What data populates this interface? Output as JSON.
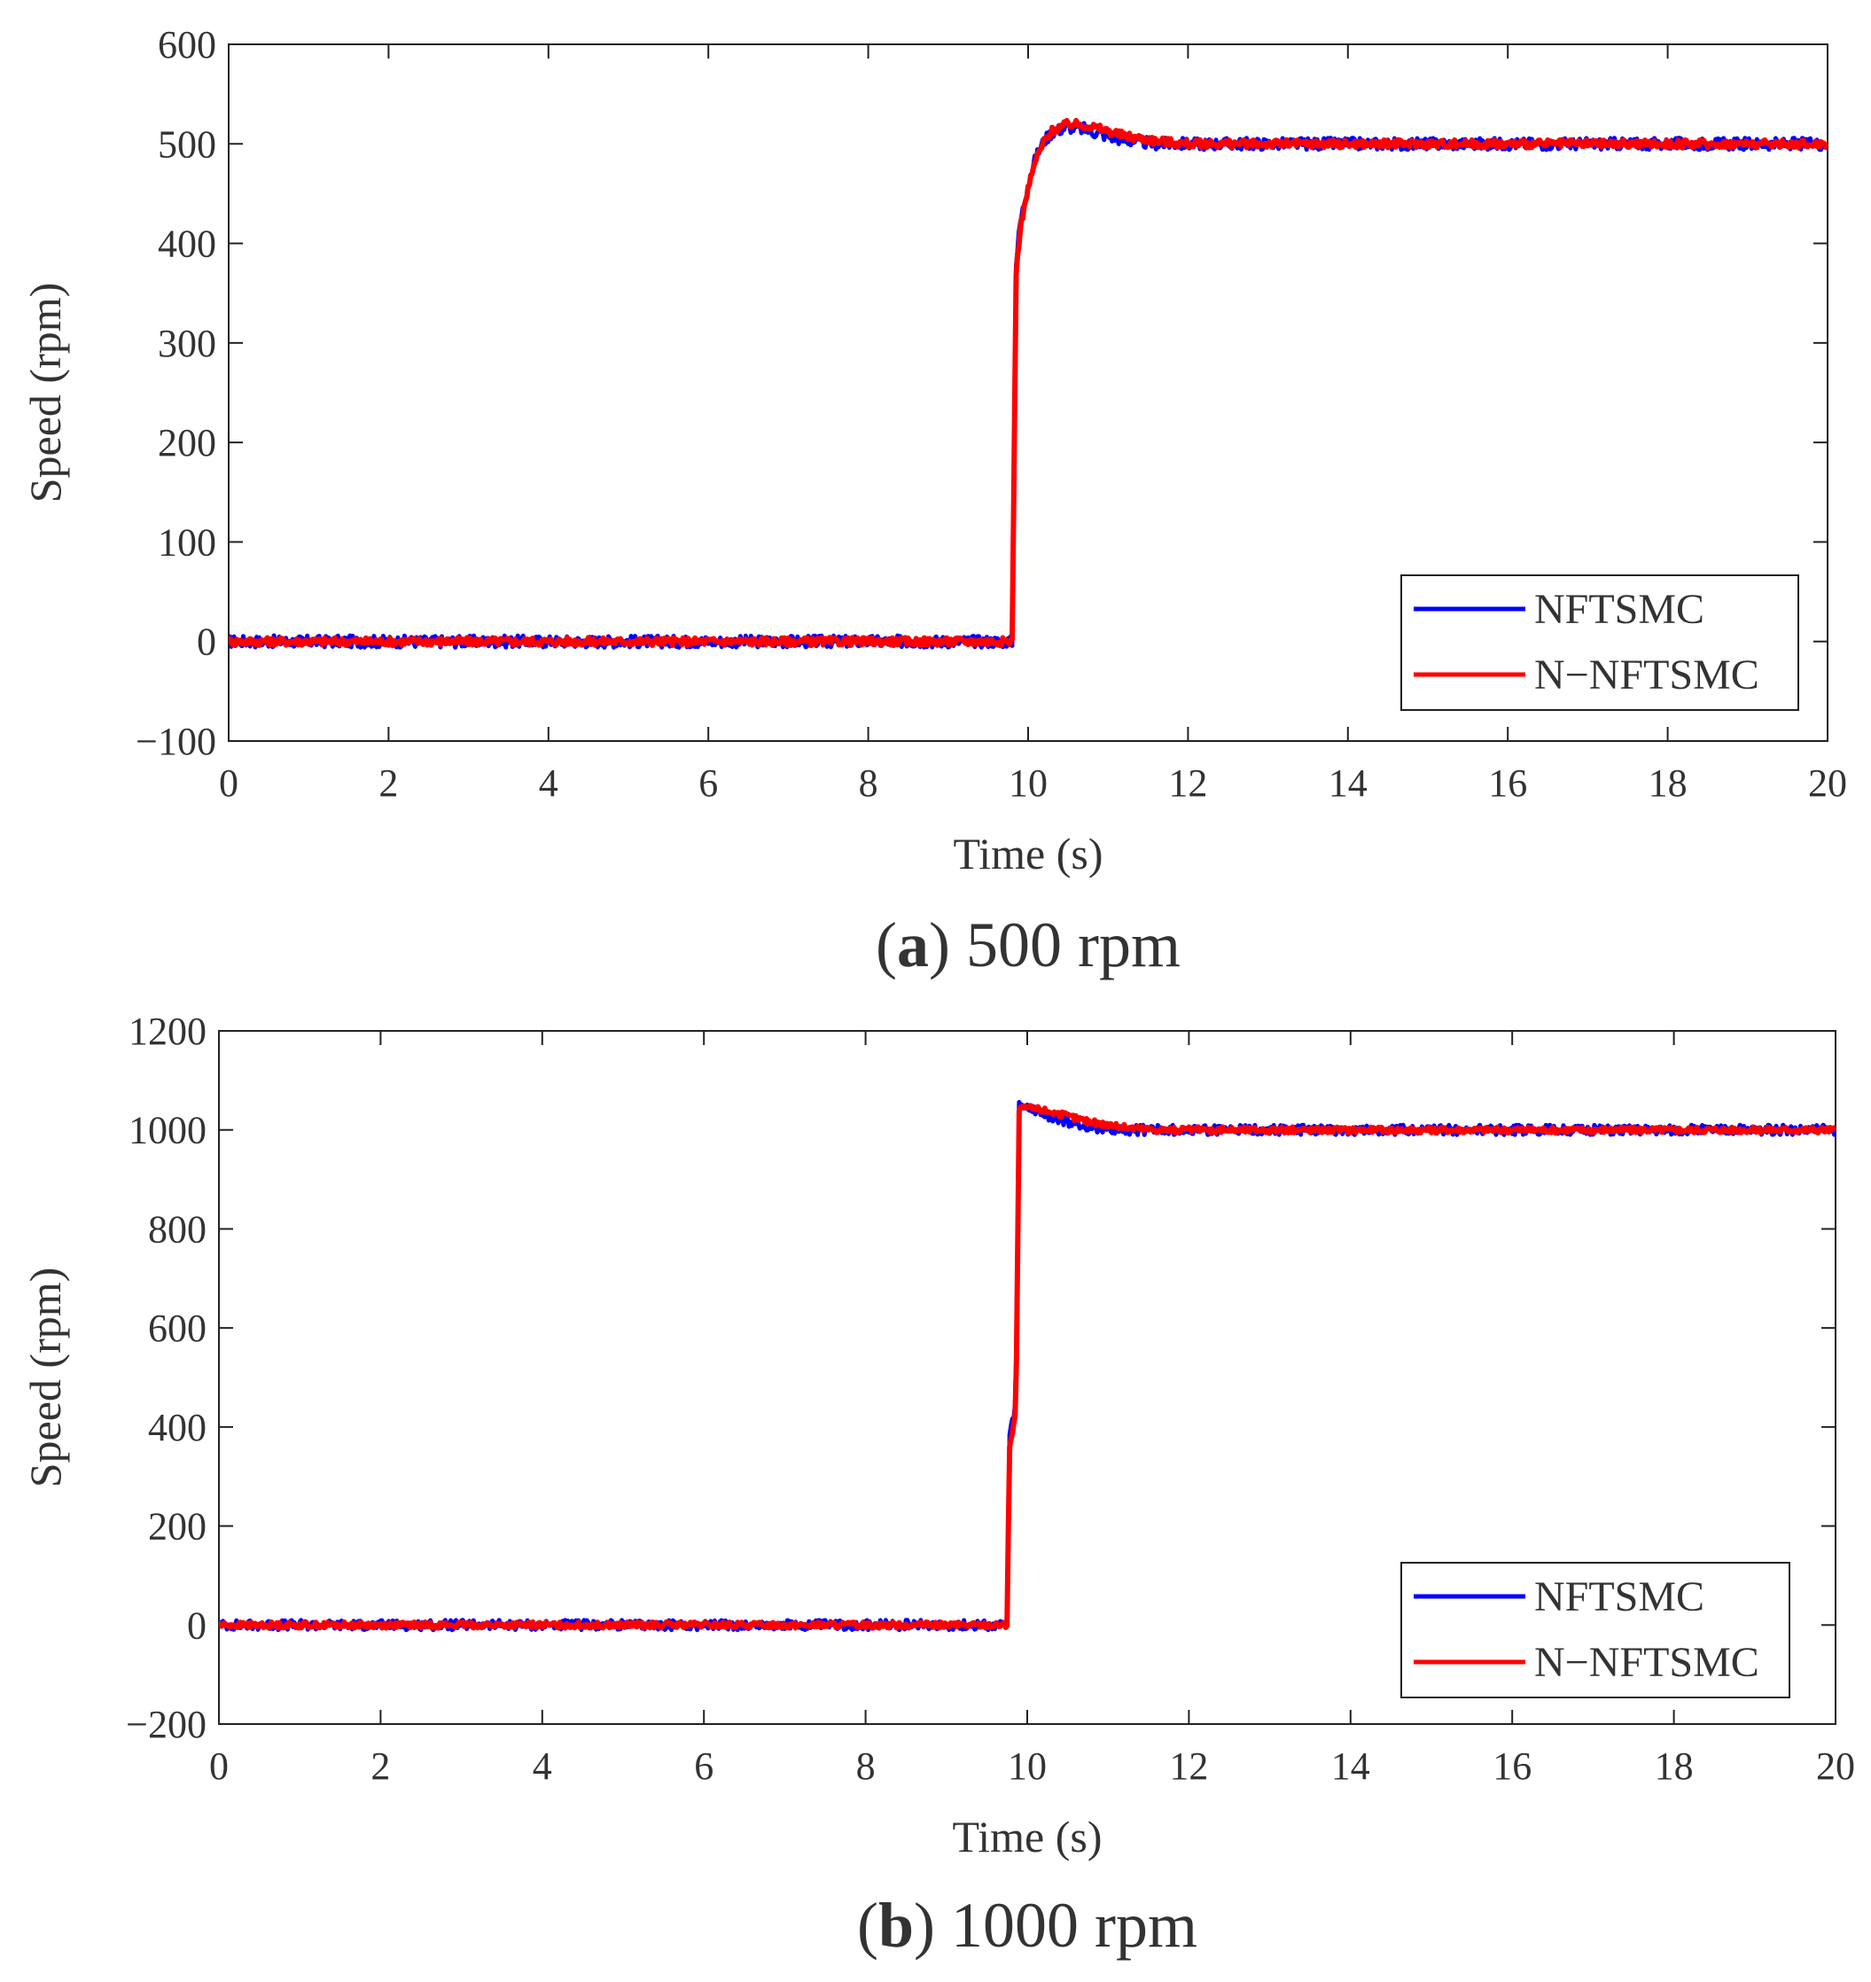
{
  "chart_data": [
    {
      "type": "line",
      "id": "a",
      "caption_letter": "a",
      "caption_text": "500 rpm",
      "xlabel": "Time (s)",
      "ylabel": "Speed (rpm)",
      "xlim": [
        0,
        20
      ],
      "ylim": [
        -100,
        600
      ],
      "xticks": [
        0,
        2,
        4,
        6,
        8,
        10,
        12,
        14,
        16,
        18,
        20
      ],
      "yticks": [
        -100,
        0,
        100,
        200,
        300,
        400,
        500,
        600
      ],
      "ytick_labels": [
        "−100",
        "0",
        "100",
        "200",
        "300",
        "400",
        "500",
        "600"
      ],
      "legend_position": "bottom-right",
      "series": [
        {
          "name": "NFTSMC",
          "color": "#0000ff",
          "ripple": 6,
          "x": [
            0,
            9.8,
            9.85,
            9.9,
            10.0,
            10.1,
            10.2,
            10.3,
            10.5,
            10.7,
            10.9,
            11.2,
            11.6,
            12.0,
            20
          ],
          "y": [
            0,
            0,
            380,
            420,
            460,
            487,
            503,
            512,
            517,
            515,
            510,
            504,
            500,
            500,
            500
          ]
        },
        {
          "name": "N−NFTSMC",
          "color": "#ff0000",
          "ripple": 4,
          "x": [
            0,
            9.8,
            9.85,
            9.9,
            10.0,
            10.1,
            10.2,
            10.3,
            10.5,
            10.7,
            10.9,
            11.2,
            11.6,
            12.0,
            20
          ],
          "y": [
            0,
            0,
            370,
            415,
            455,
            485,
            502,
            513,
            520,
            519,
            515,
            508,
            503,
            500,
            500
          ]
        }
      ]
    },
    {
      "type": "line",
      "id": "b",
      "caption_letter": "b",
      "caption_text": "1000 rpm",
      "xlabel": "Time (s)",
      "ylabel": "Speed (rpm)",
      "xlim": [
        0,
        20
      ],
      "ylim": [
        -200,
        1200
      ],
      "xticks": [
        0,
        2,
        4,
        6,
        8,
        10,
        12,
        14,
        16,
        18,
        20
      ],
      "yticks": [
        -200,
        0,
        200,
        400,
        600,
        800,
        1000,
        1200
      ],
      "ytick_labels": [
        "−200",
        "0",
        "200",
        "400",
        "600",
        "800",
        "1000",
        "1200"
      ],
      "legend_position": "bottom-right",
      "series": [
        {
          "name": "NFTSMC",
          "color": "#0000ff",
          "ripple": 10,
          "x": [
            0,
            9.75,
            9.78,
            9.82,
            9.86,
            9.9,
            10.0,
            10.2,
            10.5,
            10.8,
            11.2,
            11.6,
            20
          ],
          "y": [
            0,
            0,
            380,
            410,
            450,
            1050,
            1045,
            1030,
            1015,
            1005,
            1000,
            1000,
            1000
          ]
        },
        {
          "name": "N−NFTSMC",
          "color": "#ff0000",
          "ripple": 6,
          "x": [
            0,
            9.75,
            9.78,
            9.82,
            9.86,
            9.9,
            10.0,
            10.2,
            10.5,
            10.8,
            11.2,
            11.6,
            20
          ],
          "y": [
            0,
            0,
            360,
            390,
            430,
            1040,
            1045,
            1040,
            1028,
            1015,
            1005,
            1000,
            1000
          ]
        }
      ]
    }
  ]
}
